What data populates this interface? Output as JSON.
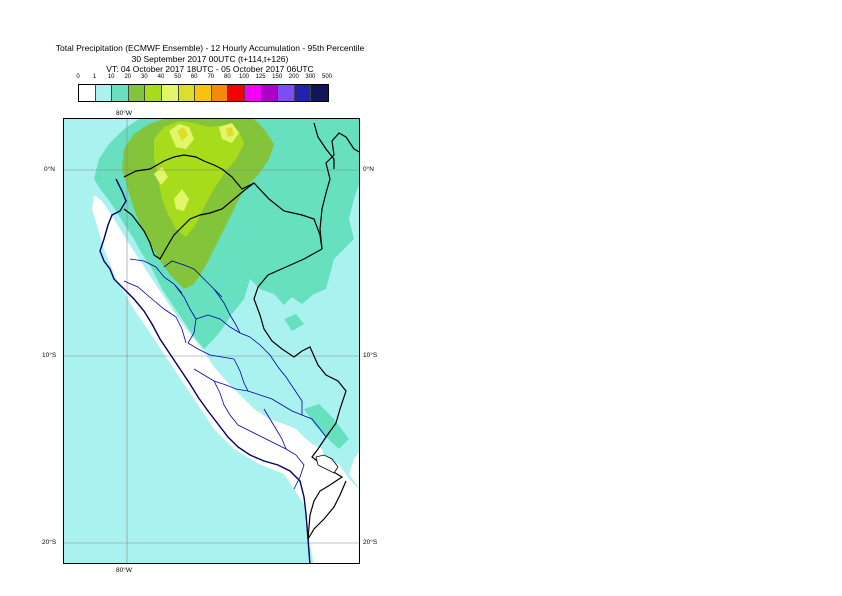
{
  "title": {
    "line1": "Total Precipitation (ECMWF Ensemble) - 12 Hourly Accumulation - 95th Percentile",
    "line2": "30 September 2017 00UTC (t+114,t+126)",
    "line3": "VT: 04 October 2017 18UTC - 05 October 2017 06UTC"
  },
  "legend": {
    "labels": [
      "0",
      "1",
      "10",
      "20",
      "30",
      "40",
      "50",
      "60",
      "70",
      "80",
      "100",
      "125",
      "150",
      "200",
      "300",
      "500"
    ],
    "colors": [
      "#ffffff",
      "#aaf2f0",
      "#66e0be",
      "#84c43a",
      "#a6dc1c",
      "#e2f66a",
      "#dede2a",
      "#f6c40e",
      "#f48a0c",
      "#f40000",
      "#f400f4",
      "#aa00c8",
      "#7a4ef4",
      "#2222aa",
      "#14145a"
    ]
  },
  "axes": {
    "lon_top": "80°W",
    "lon_bottom": "80°W",
    "lat_0_left": "0°N",
    "lat_0_right": "0°N",
    "lat_10_left": "10°S",
    "lat_10_right": "10°S",
    "lat_20_left": "20°S",
    "lat_20_right": "20°S"
  },
  "colors": {
    "ocean_light": "#aaf2f0",
    "precip_20": "#66e0be",
    "precip_30": "#84c43a",
    "precip_40": "#a6dc1c",
    "precip_50": "#e2f66a",
    "land_dry": "#ffffff",
    "country_border": "#000000",
    "region_border": "#0000aa",
    "coastline": "#000066",
    "gridline": "#888888"
  }
}
